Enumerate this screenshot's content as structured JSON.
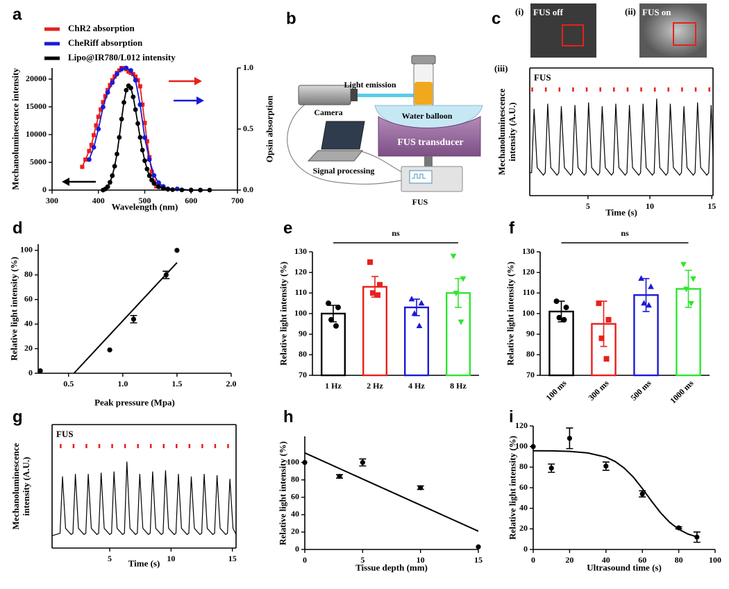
{
  "chart_data": [
    {
      "type": "line",
      "panel": "a",
      "xlabel": "Wavelength (nm)",
      "ylabel": "Mechanoluminescence intensity",
      "y2label": "Opsin absorption",
      "xlim": [
        300,
        700
      ],
      "xticks": [
        300,
        400,
        500,
        600,
        700
      ],
      "ylim": [
        0,
        22000
      ],
      "yticks": [
        0,
        5000,
        10000,
        15000,
        20000
      ],
      "y2lim": [
        0,
        1
      ],
      "y2ticks": [
        {
          "value": 0,
          "label": "0.0"
        },
        0.5,
        {
          "value": 1,
          "label": "1.0"
        }
      ],
      "legend": "top-left",
      "series": [
        {
          "name": "ChR2 absorption",
          "color": "#e8201c",
          "marker": "square",
          "axis": "y2",
          "x": [
            365,
            372,
            380,
            385,
            390,
            395,
            400,
            405,
            410,
            415,
            420,
            425,
            430,
            435,
            440,
            445,
            450,
            455,
            460,
            465,
            470,
            475,
            480,
            485,
            490,
            495,
            500,
            505,
            510,
            515,
            520,
            525
          ],
          "values": [
            0.19,
            0.25,
            0.32,
            0.37,
            0.45,
            0.53,
            0.6,
            0.66,
            0.72,
            0.77,
            0.82,
            0.86,
            0.9,
            0.93,
            0.96,
            0.98,
            1.0,
            1.0,
            0.99,
            0.97,
            0.96,
            0.95,
            0.93,
            0.9,
            0.85,
            0.7,
            0.55,
            0.4,
            0.27,
            0.15,
            0.07,
            0.03
          ]
        },
        {
          "name": "CheRiff absorption",
          "color": "#1a1ad6",
          "marker": "circle",
          "axis": "y2",
          "x": [
            380,
            390,
            400,
            410,
            420,
            430,
            440,
            450,
            460,
            470,
            480,
            490,
            500,
            510,
            520,
            530,
            540,
            550,
            570,
            600,
            620
          ],
          "values": [
            0.25,
            0.35,
            0.5,
            0.68,
            0.8,
            0.88,
            0.95,
            0.99,
            1.0,
            0.98,
            0.9,
            0.7,
            0.43,
            0.25,
            0.12,
            0.06,
            0.03,
            0.01,
            0.01,
            0,
            0
          ]
        },
        {
          "name": "Lipo@IR780/L012 intensity",
          "color": "#000000",
          "marker": "circle",
          "x": [
            410,
            415,
            420,
            425,
            430,
            435,
            440,
            445,
            450,
            455,
            460,
            465,
            470,
            475,
            480,
            485,
            490,
            495,
            500,
            505,
            510,
            515,
            520,
            530,
            540,
            550,
            560,
            580,
            600,
            620,
            640
          ],
          "values": [
            0,
            200,
            600,
            1400,
            2600,
            4300,
            6500,
            9500,
            12800,
            15800,
            18000,
            18800,
            18400,
            16800,
            14500,
            12000,
            9500,
            7200,
            5300,
            3800,
            2600,
            1800,
            1200,
            600,
            300,
            150,
            80,
            30,
            10,
            0,
            0
          ]
        }
      ]
    },
    {
      "type": "line",
      "panel": "(iii)",
      "xlabel": "Time (s)",
      "ylabel": "Mechanoluminescence intensity (A.U.)",
      "frame": true,
      "xlim": [
        0.3,
        15.1
      ],
      "xticks": [
        5,
        10,
        15
      ],
      "ylim": [
        0,
        1
      ],
      "yticks": [],
      "pulse_label": "FUS",
      "pulse_color": "#e8201c",
      "pulses": [
        0.5,
        1.6,
        2.7,
        3.8,
        4.9,
        6.0,
        7.1,
        8.2,
        9.3,
        10.4,
        11.5,
        12.6,
        13.7,
        14.8
      ],
      "series": [
        {
          "color": "#000000",
          "x": [
            0.3,
            0.45,
            0.65,
            0.9,
            1.4,
            1.55,
            1.75,
            2.0,
            2.5,
            2.65,
            2.85,
            3.1,
            3.6,
            3.75,
            3.95,
            4.2,
            4.7,
            4.85,
            5.05,
            5.3,
            5.8,
            5.95,
            6.15,
            6.4,
            6.9,
            7.05,
            7.25,
            7.5,
            8.0,
            8.15,
            8.35,
            8.6,
            9.1,
            9.25,
            9.45,
            9.7,
            10.2,
            10.35,
            10.55,
            10.8,
            11.3,
            11.45,
            11.65,
            11.9,
            12.4,
            12.55,
            12.75,
            13.0,
            13.5,
            13.65,
            13.85,
            14.1,
            14.6,
            14.75,
            14.95,
            15.1
          ],
          "values": [
            0.18,
            0.18,
            0.68,
            0.22,
            0.16,
            0.18,
            0.72,
            0.22,
            0.16,
            0.18,
            0.7,
            0.22,
            0.16,
            0.18,
            0.71,
            0.22,
            0.16,
            0.18,
            0.73,
            0.22,
            0.16,
            0.18,
            0.7,
            0.22,
            0.16,
            0.18,
            0.72,
            0.22,
            0.16,
            0.18,
            0.71,
            0.22,
            0.16,
            0.18,
            0.72,
            0.22,
            0.16,
            0.18,
            0.76,
            0.22,
            0.16,
            0.18,
            0.72,
            0.22,
            0.16,
            0.18,
            0.7,
            0.22,
            0.16,
            0.18,
            0.73,
            0.22,
            0.16,
            0.18,
            0.71,
            0.3
          ]
        }
      ]
    },
    {
      "type": "scatter",
      "panel": "d",
      "xlabel": "Peak pressure (Mpa)",
      "ylabel": "Relative light intensity (%)",
      "xlim": [
        0.22,
        2
      ],
      "xticks": [
        0.5,
        {
          "value": 1,
          "label": "1.0"
        },
        1.5,
        {
          "value": 2,
          "label": "2.0"
        }
      ],
      "ylim": [
        0,
        105
      ],
      "yticks": [
        0,
        20,
        40,
        60,
        80,
        100
      ],
      "color": "#000000",
      "x": [
        0.24,
        0.88,
        1.1,
        1.4,
        1.5
      ],
      "values": [
        2,
        19,
        44,
        80,
        100
      ],
      "errors": [
        null,
        null,
        3,
        3,
        null
      ],
      "fit": {
        "x": [
          0.55,
          1.5
        ],
        "values": [
          0,
          90
        ]
      }
    },
    {
      "type": "bar",
      "panel": "e",
      "ylabel": "Relative light intensity (%)",
      "annotation": "ns",
      "categories": [
        "1 Hz",
        "2 Hz",
        "4 Hz",
        "8 Hz"
      ],
      "values": [
        100,
        113,
        103,
        110
      ],
      "errors": [
        4,
        5,
        4,
        7
      ],
      "colors": [
        "#000000",
        "#e8201c",
        "#1a1ad6",
        "#2ee62e"
      ],
      "markers": [
        "circle",
        "square",
        "triangle-up",
        "triangle-down"
      ],
      "points": [
        [
          105,
          103,
          97,
          94
        ],
        [
          125,
          114,
          110,
          109
        ],
        [
          107,
          105,
          100,
          94
        ],
        [
          128,
          117,
          110,
          96
        ]
      ],
      "ylim": [
        70,
        130
      ],
      "yticks": [
        70,
        80,
        90,
        100,
        110,
        120,
        130
      ]
    },
    {
      "type": "bar",
      "panel": "f",
      "ylabel": "Relative light intensity (%)",
      "annotation": "ns",
      "categories": [
        "100 ms",
        "300 ms",
        "500 ms",
        "1000 ms"
      ],
      "values": [
        101,
        95,
        109,
        112
      ],
      "errors": [
        5,
        11,
        8,
        9
      ],
      "colors": [
        "#000000",
        "#e8201c",
        "#1a1ad6",
        "#2ee62e"
      ],
      "markers": [
        "circle",
        "square",
        "triangle-up",
        "triangle-down"
      ],
      "points": [
        [
          106,
          103,
          98,
          97
        ],
        [
          105,
          97,
          88,
          78
        ],
        [
          117,
          113,
          105,
          104
        ],
        [
          124,
          117,
          112,
          105
        ]
      ],
      "ylim": [
        70,
        130
      ],
      "yticks": [
        70,
        80,
        90,
        100,
        110,
        120,
        130
      ]
    },
    {
      "type": "line",
      "panel": "g",
      "xlabel": "Time (s)",
      "ylabel": "Mechanoluminescence intensity (A.U.)",
      "frame": true,
      "xlim": [
        0.3,
        15.3
      ],
      "xticks": [
        5,
        10,
        15
      ],
      "ylim": [
        0,
        1
      ],
      "yticks": [],
      "pulse_label": "FUS",
      "pulse_color": "#e8201c",
      "pulses": [
        1.0,
        2.05,
        3.1,
        4.15,
        5.2,
        6.25,
        7.3,
        8.35,
        9.4,
        10.45,
        11.5,
        12.55,
        13.6,
        14.65
      ],
      "series": [
        {
          "color": "#000000",
          "x": [
            0.3,
            0.95,
            1.15,
            1.4,
            1.85,
            2.0,
            2.2,
            2.45,
            2.9,
            3.05,
            3.25,
            3.5,
            3.95,
            4.1,
            4.3,
            4.55,
            5.0,
            5.15,
            5.35,
            5.6,
            6.05,
            6.2,
            6.4,
            6.65,
            7.1,
            7.25,
            7.45,
            7.7,
            8.15,
            8.3,
            8.5,
            8.75,
            9.2,
            9.35,
            9.55,
            9.8,
            10.25,
            10.4,
            10.6,
            10.85,
            11.3,
            11.45,
            11.65,
            11.9,
            12.35,
            12.5,
            12.7,
            12.95,
            13.4,
            13.55,
            13.75,
            14.0,
            14.45,
            14.6,
            14.8,
            15.05,
            15.3
          ],
          "values": [
            0.1,
            0.12,
            0.58,
            0.16,
            0.11,
            0.12,
            0.6,
            0.16,
            0.11,
            0.12,
            0.6,
            0.16,
            0.11,
            0.12,
            0.61,
            0.16,
            0.11,
            0.12,
            0.62,
            0.16,
            0.11,
            0.12,
            0.7,
            0.16,
            0.11,
            0.12,
            0.6,
            0.16,
            0.11,
            0.12,
            0.62,
            0.16,
            0.11,
            0.12,
            0.63,
            0.16,
            0.11,
            0.12,
            0.6,
            0.16,
            0.11,
            0.12,
            0.58,
            0.16,
            0.11,
            0.12,
            0.6,
            0.16,
            0.11,
            0.12,
            0.59,
            0.16,
            0.11,
            0.12,
            0.56,
            0.16,
            0.11
          ]
        }
      ]
    },
    {
      "type": "scatter",
      "panel": "h",
      "xlabel": "Tissue depth (mm)",
      "ylabel": "Relative light intensity (%)",
      "xlim": [
        0,
        15
      ],
      "xticks": [
        0,
        5,
        10,
        15
      ],
      "ylim": [
        0,
        130
      ],
      "yticks": [
        0,
        20,
        40,
        60,
        80,
        100
      ],
      "color": "#000000",
      "x": [
        0,
        3,
        5,
        10,
        15
      ],
      "values": [
        100,
        84,
        100,
        71,
        3
      ],
      "errors": [
        null,
        2,
        4,
        2,
        null
      ],
      "fit": {
        "x": [
          0,
          15
        ],
        "values": [
          111,
          21
        ]
      }
    },
    {
      "type": "scatter",
      "panel": "i",
      "xlabel": "Ultrasound time (s)",
      "ylabel": "Relative light intensity (%)",
      "xlim": [
        0,
        100
      ],
      "xticks": [
        0,
        20,
        40,
        60,
        80,
        100
      ],
      "ylim": [
        0,
        120
      ],
      "yticks": [
        0,
        20,
        40,
        60,
        80,
        100,
        120
      ],
      "color": "#000000",
      "x": [
        0,
        10,
        20,
        40,
        60,
        80,
        90
      ],
      "values": [
        100,
        79,
        108,
        81,
        54,
        21,
        12
      ],
      "errors": [
        null,
        4,
        10,
        4,
        3,
        1,
        5
      ],
      "fit": {
        "x": [
          0,
          10,
          20,
          30,
          40,
          45,
          50,
          55,
          60,
          65,
          70,
          75,
          80,
          85,
          90
        ],
        "values": [
          95.9,
          95.8,
          95.3,
          93.8,
          89.7,
          85.5,
          79.1,
          70.4,
          59.2,
          47.1,
          35.7,
          26.4,
          19.6,
          15,
          12.2
        ]
      }
    }
  ],
  "diagram": {
    "panel": "b",
    "labels": [
      "Light emission",
      "Camera",
      "Water balloon",
      "FUS transducer",
      "Signal processing",
      "FUS"
    ]
  },
  "images": {
    "panel": "c",
    "items": [
      {
        "tag": "(i)",
        "caption": "FUS off"
      },
      {
        "tag": "(ii)",
        "caption": "FUS on"
      }
    ]
  }
}
